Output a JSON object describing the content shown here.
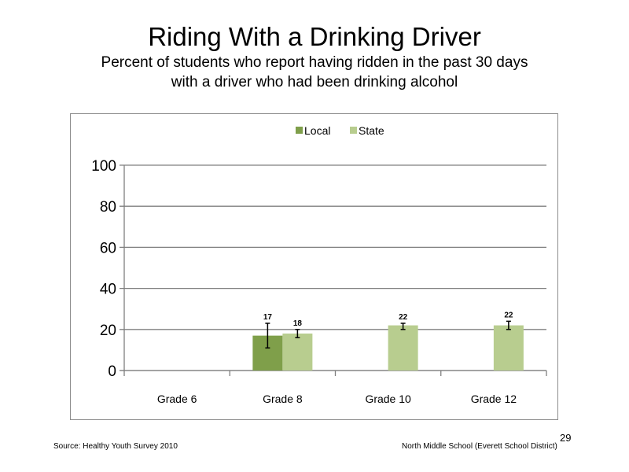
{
  "slide": {
    "title": "Riding With a Drinking Driver",
    "subtitle_lines": [
      "Percent of students who report having ridden in the past 30 days",
      "with a driver who had been drinking alcohol"
    ],
    "source": "Source: Healthy Youth Survey 2010",
    "school": "North Middle  School (Everett School District)",
    "page_number": "29"
  },
  "colors": {
    "local": "#7f9f4a",
    "state": "#b8cd8f",
    "grid": "#7f7f7f",
    "frame": "#8c8c8c"
  },
  "chart_data": {
    "type": "bar",
    "categories": [
      "Grade 6",
      "Grade 8",
      "Grade 10",
      "Grade 12"
    ],
    "series": [
      {
        "name": "Local",
        "values": [
          null,
          17,
          null,
          null
        ],
        "labels": [
          "",
          "17",
          "",
          ""
        ],
        "error_low": [
          null,
          11,
          null,
          null
        ],
        "error_high": [
          null,
          23,
          null,
          null
        ]
      },
      {
        "name": "State",
        "values": [
          null,
          18,
          22,
          22
        ],
        "labels": [
          "",
          "18",
          "22",
          "22"
        ],
        "error_low": [
          null,
          16,
          20,
          20
        ],
        "error_high": [
          null,
          20,
          23,
          24
        ]
      }
    ],
    "ylim": [
      0,
      100
    ],
    "yticks": [
      "0",
      "20",
      "40",
      "60",
      "80",
      "100"
    ],
    "xlabel": "",
    "ylabel": "",
    "legend_position": "top",
    "grid": true
  }
}
